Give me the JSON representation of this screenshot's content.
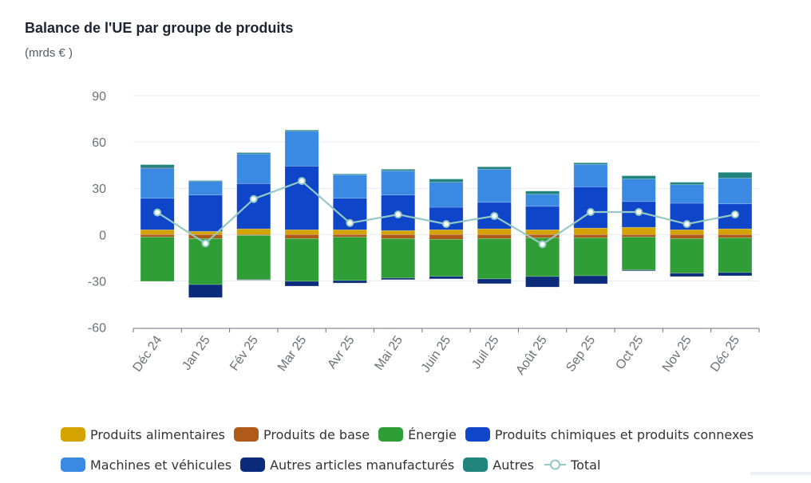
{
  "header": {
    "title": "Balance de l'UE par groupe de produits",
    "subtitle": "(mrds € )"
  },
  "chart_data": {
    "type": "bar",
    "stacked": true,
    "title": "Balance de l'UE par groupe de produits",
    "unit": "(mrds € )",
    "xlabel": "",
    "ylabel": "",
    "ylim": [
      -60,
      90
    ],
    "yticks": [
      90,
      60,
      30,
      0,
      -30,
      -60
    ],
    "grid": true,
    "legend_position": "bottom",
    "categories": [
      "Déc 24",
      "Jan 25",
      "Fév 25",
      "Mar 25",
      "Avr 25",
      "Mai 25",
      "Juin 25",
      "Juil 25",
      "Août 25",
      "Sep 25",
      "Oct 25",
      "Nov 25",
      "Déc 25"
    ],
    "series": [
      {
        "name": "Produits alimentaires",
        "color": "#d4a300",
        "values": [
          3.1,
          2.1,
          3.7,
          3.1,
          3.1,
          2.6,
          3.1,
          3.7,
          3.1,
          4.2,
          4.7,
          3.1,
          3.7
        ]
      },
      {
        "name": "Produits de base",
        "color": "#b05a1a",
        "values": [
          -1.6,
          -2.6,
          -0.5,
          -2.6,
          -1.6,
          -2.6,
          -3.1,
          -2.6,
          -2.1,
          -2.1,
          -1.6,
          -2.6,
          -2.1
        ]
      },
      {
        "name": "Énergie",
        "color": "#2f9e36",
        "values": [
          -28.7,
          -29.8,
          -28.7,
          -27.7,
          -28.2,
          -25.6,
          -24.0,
          -26.1,
          -25.1,
          -24.6,
          -21.4,
          -22.5,
          -22.5
        ]
      },
      {
        "name": "Produits chimiques et produits connexes",
        "color": "#0f45c9",
        "values": [
          20.4,
          23.5,
          29.3,
          41.3,
          20.4,
          23.0,
          14.6,
          17.2,
          15.2,
          26.7,
          16.7,
          17.2,
          16.2
        ]
      },
      {
        "name": "Machines et véhicules",
        "color": "#3a8ae4",
        "values": [
          19.3,
          8.9,
          19.3,
          22.5,
          15.2,
          15.7,
          16.2,
          21.4,
          7.8,
          14.6,
          14.6,
          12.0,
          16.7
        ]
      },
      {
        "name": "Autres articles manufacturés",
        "color": "#0b2c7a",
        "values": [
          0.5,
          -8.4,
          -0.3,
          -3.1,
          -1.6,
          -1.0,
          -1.6,
          -3.1,
          -6.8,
          -5.2,
          -0.5,
          -2.1,
          -2.1
        ]
      },
      {
        "name": "Autres",
        "color": "#21857e",
        "values": [
          2.0,
          0.5,
          0.8,
          0.8,
          0.6,
          1.0,
          2.1,
          1.6,
          2.1,
          1.0,
          2.1,
          1.6,
          3.7
        ]
      }
    ],
    "line_series": {
      "name": "Total",
      "color": "#94c9c5",
      "values": [
        14.3,
        -5.7,
        23.0,
        34.7,
        7.5,
        13.0,
        6.8,
        12.0,
        -6.3,
        14.6,
        14.6,
        6.8,
        13.0
      ]
    }
  },
  "legend": {
    "rows": [
      [
        0,
        1,
        2,
        3
      ],
      [
        4,
        5,
        6,
        "total"
      ]
    ],
    "total_label": "Total"
  }
}
